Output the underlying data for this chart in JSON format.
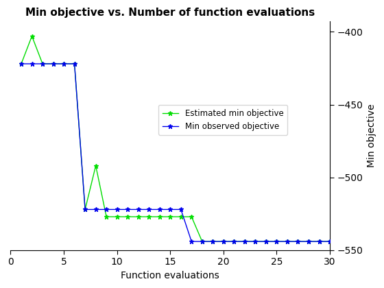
{
  "title": "Min objective vs. Number of function evaluations",
  "xlabel": "Function evaluations",
  "ylabel": "Min objective",
  "xlim": [
    0,
    30
  ],
  "ylim": [
    -550,
    -393
  ],
  "yticks": [
    -550,
    -500,
    -450,
    -400
  ],
  "xticks": [
    0,
    5,
    10,
    15,
    20,
    25,
    30
  ],
  "blue_x": [
    1,
    2,
    3,
    4,
    5,
    6,
    7,
    8,
    9,
    10,
    11,
    12,
    13,
    14,
    15,
    16,
    17,
    18,
    19,
    20,
    21,
    22,
    23,
    24,
    25,
    26,
    27,
    28,
    29,
    30
  ],
  "blue_y": [
    -422,
    -422,
    -422,
    -422,
    -422,
    -422,
    -522,
    -522,
    -522,
    -522,
    -522,
    -522,
    -522,
    -522,
    -522,
    -522,
    -544,
    -544,
    -544,
    -544,
    -544,
    -544,
    -544,
    -544,
    -544,
    -544,
    -544,
    -544,
    -544,
    -544
  ],
  "green_x": [
    1,
    2,
    3,
    4,
    5,
    6,
    7,
    8,
    9,
    10,
    11,
    12,
    13,
    14,
    15,
    16,
    17,
    18,
    19,
    20,
    21,
    22,
    23,
    24,
    25,
    26,
    27,
    28,
    29,
    30
  ],
  "green_y": [
    -422,
    -403,
    -422,
    -422,
    -422,
    -422,
    -522,
    -492,
    -527,
    -527,
    -527,
    -527,
    -527,
    -527,
    -527,
    -527,
    -527,
    -544,
    -544,
    -544,
    -544,
    -544,
    -544,
    -544,
    -544,
    -544,
    -544,
    -544,
    -544,
    -544
  ],
  "blue_color": "#0000ee",
  "green_color": "#00dd00",
  "blue_label": "Min observed objective",
  "green_label": "Estimated min objective",
  "bg_color": "#ffffff",
  "marker": "*",
  "marker_size": 5,
  "linewidth": 1.0
}
